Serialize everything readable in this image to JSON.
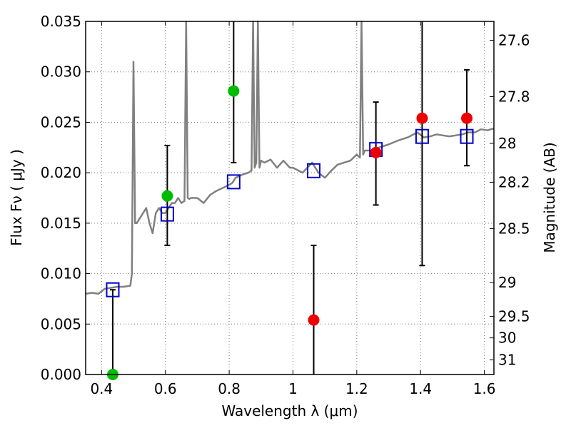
{
  "chart_data": {
    "type": "scatter",
    "xlabel": "Wavelength  λ (μm)",
    "ylabel": "Flux  Fν  ( μJy )",
    "ylabel_right": "Magnitude (AB)",
    "xlim": [
      0.35,
      1.63
    ],
    "ylim": [
      0,
      0.035
    ],
    "grid": true,
    "x_ticks": [
      0.4,
      0.6,
      0.8,
      1.0,
      1.2,
      1.4,
      1.6
    ],
    "x_tick_labels": [
      "0.4",
      "0.6",
      "0.8",
      "1",
      "1.2",
      "1.4",
      "1.6"
    ],
    "y_ticks": [
      0.0,
      0.005,
      0.01,
      0.015,
      0.02,
      0.025,
      0.03,
      0.035
    ],
    "y_tick_labels": [
      "0.000",
      "0.005",
      "0.010",
      "0.015",
      "0.020",
      "0.025",
      "0.030",
      "0.035"
    ],
    "right_ticks": [
      27.6,
      27.8,
      28.0,
      28.2,
      28.5,
      29.0,
      29.5,
      30.0,
      31.0
    ],
    "right_tick_labels": [
      "27.6",
      "27.8",
      "28",
      "28.2",
      "28.5",
      "29",
      "29.5",
      "30",
      "31"
    ],
    "colors": {
      "spectrum": "#808080",
      "model_photometry": "#0000cc",
      "optical_detections": "#00bb00",
      "nir_detections": "#ee0000",
      "errorbars": "#000000",
      "grid": "#777777"
    },
    "series": [
      {
        "kind": "spectrum",
        "x": [
          0.35,
          0.37,
          0.39,
          0.41,
          0.43,
          0.45,
          0.47,
          0.49,
          0.495,
          0.5,
          0.505,
          0.51,
          0.52,
          0.54,
          0.55,
          0.56,
          0.57,
          0.58,
          0.59,
          0.6,
          0.61,
          0.62,
          0.63,
          0.64,
          0.65,
          0.66,
          0.665,
          0.67,
          0.675,
          0.68,
          0.7,
          0.72,
          0.74,
          0.76,
          0.78,
          0.8,
          0.81,
          0.82,
          0.84,
          0.86,
          0.87,
          0.875,
          0.88,
          0.885,
          0.89,
          0.895,
          0.9,
          0.91,
          0.93,
          0.95,
          0.97,
          0.99,
          1.0,
          1.03,
          1.06,
          1.08,
          1.1,
          1.12,
          1.14,
          1.16,
          1.18,
          1.2,
          1.21,
          1.215,
          1.22,
          1.225,
          1.23,
          1.25,
          1.27,
          1.3,
          1.33,
          1.36,
          1.39,
          1.41,
          1.43,
          1.45,
          1.47,
          1.49,
          1.51,
          1.53,
          1.55,
          1.57,
          1.59,
          1.61,
          1.63
        ],
        "y": [
          0.008,
          0.0081,
          0.008,
          0.0085,
          0.0086,
          0.0087,
          0.0087,
          0.0088,
          0.01,
          0.031,
          0.015,
          0.015,
          0.0155,
          0.0165,
          0.015,
          0.014,
          0.016,
          0.0165,
          0.016,
          0.016,
          0.0165,
          0.017,
          0.017,
          0.0175,
          0.017,
          0.0172,
          0.035,
          0.0175,
          0.0174,
          0.0175,
          0.0175,
          0.017,
          0.0178,
          0.0182,
          0.0185,
          0.0188,
          0.019,
          0.0195,
          0.0198,
          0.02,
          0.0202,
          0.035,
          0.0205,
          0.021,
          0.035,
          0.0205,
          0.0212,
          0.021,
          0.0213,
          0.0205,
          0.0212,
          0.0205,
          0.0205,
          0.02,
          0.021,
          0.02,
          0.0195,
          0.0202,
          0.0208,
          0.021,
          0.0212,
          0.0218,
          0.0215,
          0.035,
          0.0218,
          0.0222,
          0.0222,
          0.0222,
          0.0225,
          0.0228,
          0.0232,
          0.0235,
          0.024,
          0.0235,
          0.0236,
          0.0238,
          0.0237,
          0.0236,
          0.0237,
          0.0238,
          0.024,
          0.024,
          0.0243,
          0.0242,
          0.0244
        ]
      },
      {
        "kind": "model_photometry",
        "x": [
          0.435,
          0.606,
          0.814,
          1.065,
          1.26,
          1.405,
          1.545
        ],
        "y": [
          0.0084,
          0.0159,
          0.0191,
          0.0202,
          0.0223,
          0.0236,
          0.0236
        ]
      },
      {
        "kind": "optical_detections",
        "x": [
          0.435,
          0.606,
          0.814
        ],
        "y": [
          0.0,
          0.0177,
          0.0281
        ],
        "err_low": [
          0.0,
          0.0049,
          0.0071
        ],
        "err_high": [
          0.0084,
          0.005,
          0.0069
        ]
      },
      {
        "kind": "nir_detections",
        "x": [
          1.065,
          1.26,
          1.405,
          1.545
        ],
        "y": [
          0.0054,
          0.022,
          0.0254,
          0.0254
        ],
        "err_low": [
          0.0054,
          0.0052,
          0.0146,
          0.0047
        ],
        "err_high": [
          0.0074,
          0.005,
          0.0096,
          0.0048
        ]
      }
    ]
  }
}
